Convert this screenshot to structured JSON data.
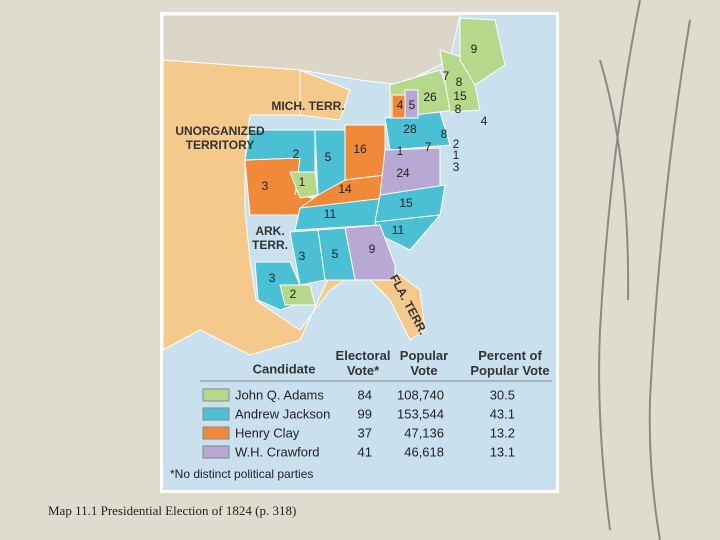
{
  "map": {
    "regions": [
      "MICH. TERR.",
      "UNORGANIZED TERRITORY",
      "ARK. TERR.",
      "FLA. TERR."
    ],
    "state_votes": [
      "9",
      "7",
      "8",
      "26",
      "15",
      "8",
      "4",
      "4",
      "5",
      "28",
      "8",
      "2",
      "1",
      "3",
      "1",
      "7",
      "2",
      "5",
      "16",
      "3",
      "1",
      "14",
      "24",
      "11",
      "15",
      "11",
      "3",
      "5",
      "9",
      "3",
      "2"
    ]
  },
  "table": {
    "header": [
      "Candidate",
      "Electoral Vote*",
      "Popular Vote",
      "Percent of Popular Vote"
    ],
    "rows": [
      [
        "John Q. Adams",
        "84",
        "108,740",
        "30.5"
      ],
      [
        "Andrew Jackson",
        "99",
        "153,544",
        "43.1"
      ],
      [
        "Henry Clay",
        "37",
        "47,136",
        "13.2"
      ],
      [
        "W.H. Crawford",
        "41",
        "46,618",
        "13.1"
      ]
    ],
    "footnote": "*No distinct political parties"
  },
  "caption": "Map 11.1 Presidential Election of 1824 (p. 318)"
}
